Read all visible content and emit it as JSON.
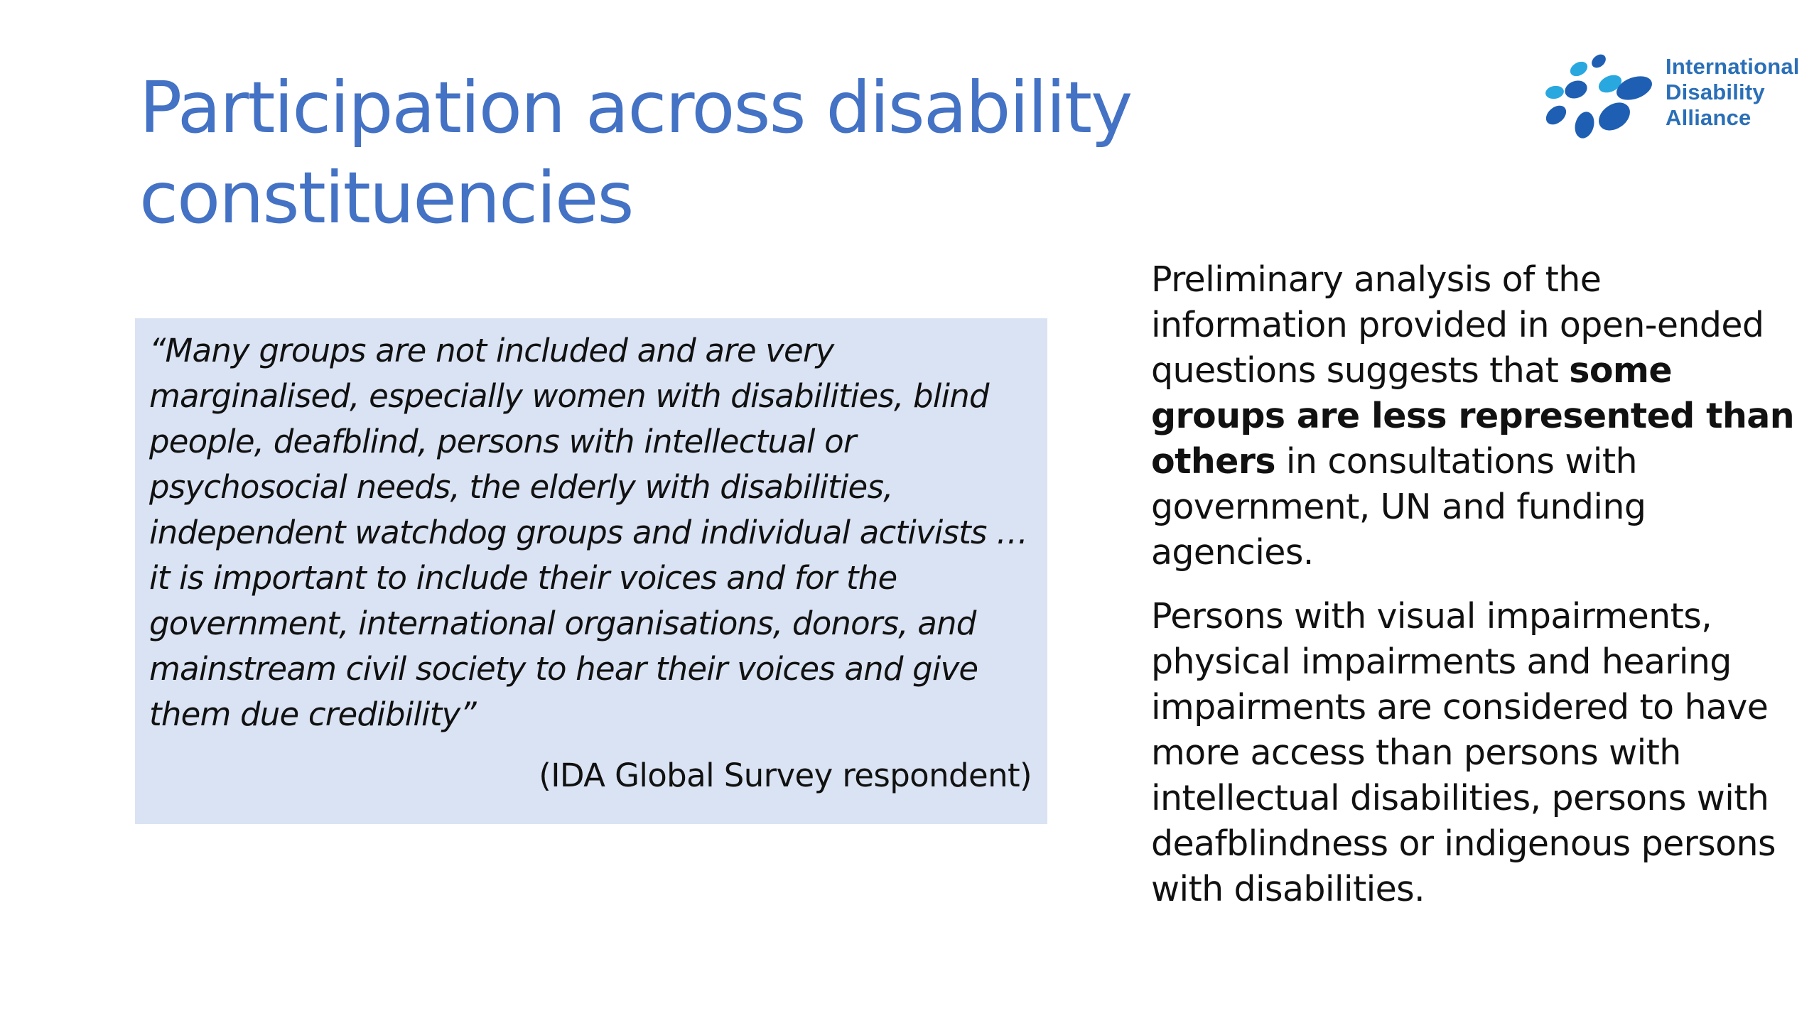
{
  "slide": {
    "title": "Participation across disability constituencies",
    "logo": {
      "line1": "International",
      "line2": "Disability",
      "line3": "Alliance",
      "icon": "ida-dots-logo-icon",
      "colors": {
        "light_blue": "#29a8e0",
        "dark_blue": "#1e5fb3"
      }
    },
    "quote": {
      "text": "“Many groups are not included and are very marginalised, especially women with disabilities, blind people, deafblind, persons with intellectual or psychosocial needs, the elderly with disabilities, independent watchdog groups and individual activists … it is important to include their voices and for the government, international organisations, donors, and mainstream civil society to hear their voices and give them due credibility”",
      "attribution": "(IDA Global Survey respondent)"
    },
    "analysis": {
      "paragraph1_part1": "Preliminary analysis of the information provided in open-ended questions suggests that ",
      "paragraph1_bold": "some groups are less represented than others",
      "paragraph1_part2": " in consultations with government, UN and funding agencies.",
      "paragraph2": "Persons with visual impairments, physical impairments and hearing impairments are considered to have more access than persons with intellectual disabilities, persons with deafblindness or indigenous persons with disabilities."
    },
    "colors": {
      "title": "#4472c4",
      "quote_background": "#dae3f3"
    }
  }
}
